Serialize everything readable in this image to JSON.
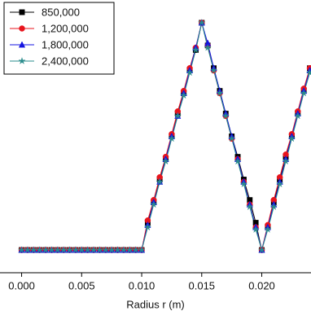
{
  "chart_data": {
    "type": "line",
    "x_label": "Radius r (m)",
    "x": [
      0,
      0.0005,
      0.001,
      0.0015,
      0.002,
      0.0025,
      0.003,
      0.0035,
      0.004,
      0.0045,
      0.005,
      0.0055,
      0.006,
      0.0065,
      0.007,
      0.0075,
      0.008,
      0.0085,
      0.009,
      0.0095,
      0.01,
      0.0105,
      0.011,
      0.0115,
      0.012,
      0.0125,
      0.013,
      0.0135,
      0.014,
      0.0145,
      0.015,
      0.0155,
      0.016,
      0.0165,
      0.017,
      0.0175,
      0.018,
      0.0185,
      0.019,
      0.0195,
      0.02,
      0.0205,
      0.021,
      0.0215,
      0.022,
      0.0225,
      0.023,
      0.0235,
      0.024
    ],
    "series": [
      {
        "name": "850,000",
        "color": "#000000",
        "marker": "square",
        "values": [
          0,
          0,
          0,
          0,
          0,
          0,
          0,
          0,
          0,
          0,
          0,
          0,
          0,
          0,
          0,
          0,
          0,
          0,
          0,
          0,
          0,
          0.12,
          0.21,
          0.31,
          0.4,
          0.5,
          0.6,
          0.69,
          0.79,
          0.88,
          1.0,
          0.9,
          0.8,
          0.7,
          0.6,
          0.5,
          0.41,
          0.31,
          0.22,
          0.12,
          0.0,
          0.1,
          0.21,
          0.31,
          0.41,
          0.5,
          0.6,
          0.7,
          0.8
        ]
      },
      {
        "name": "1,200,000",
        "color": "#e8141c",
        "marker": "circle",
        "values": [
          0,
          0,
          0,
          0,
          0,
          0,
          0,
          0,
          0,
          0,
          0,
          0,
          0,
          0,
          0,
          0,
          0,
          0,
          0,
          0,
          0,
          0.13,
          0.22,
          0.32,
          0.41,
          0.51,
          0.61,
          0.7,
          0.8,
          0.89,
          1.0,
          0.9,
          0.79,
          0.69,
          0.59,
          0.49,
          0.4,
          0.3,
          0.2,
          0.1,
          0.0,
          0.11,
          0.22,
          0.32,
          0.42,
          0.51,
          0.61,
          0.71,
          0.8
        ]
      },
      {
        "name": "1,800,000",
        "color": "#1414e0",
        "marker": "triangle",
        "values": [
          0,
          0,
          0,
          0,
          0,
          0,
          0,
          0,
          0,
          0,
          0,
          0,
          0,
          0,
          0,
          0,
          0,
          0,
          0,
          0,
          0,
          0.11,
          0.21,
          0.3,
          0.4,
          0.5,
          0.59,
          0.69,
          0.79,
          0.89,
          1.0,
          0.91,
          0.8,
          0.7,
          0.6,
          0.5,
          0.4,
          0.3,
          0.2,
          0.1,
          0.0,
          0.1,
          0.2,
          0.3,
          0.4,
          0.5,
          0.6,
          0.7,
          0.79
        ]
      },
      {
        "name": "2,400,000",
        "color": "#2a8c8c",
        "marker": "star",
        "values": [
          0,
          0,
          0,
          0,
          0,
          0,
          0,
          0,
          0,
          0,
          0,
          0,
          0,
          0,
          0,
          0,
          0,
          0,
          0,
          0,
          0,
          0.1,
          0.2,
          0.3,
          0.39,
          0.49,
          0.59,
          0.68,
          0.78,
          0.88,
          1.0,
          0.89,
          0.79,
          0.69,
          0.59,
          0.49,
          0.39,
          0.29,
          0.19,
          0.09,
          0.0,
          0.09,
          0.19,
          0.29,
          0.39,
          0.49,
          0.59,
          0.69,
          0.78
        ]
      }
    ],
    "xlim": [
      -0.0018,
      0.0241
    ],
    "xticks": [
      {
        "value": 0,
        "label": "0.000"
      },
      {
        "value": 0.005,
        "label": "0.005"
      },
      {
        "value": 0.01,
        "label": "0.010"
      },
      {
        "value": 0.015,
        "label": "0.015"
      },
      {
        "value": 0.02,
        "label": "0.020"
      }
    ],
    "ylim": [
      -0.1,
      1.1
    ],
    "legend": "upper-left"
  }
}
